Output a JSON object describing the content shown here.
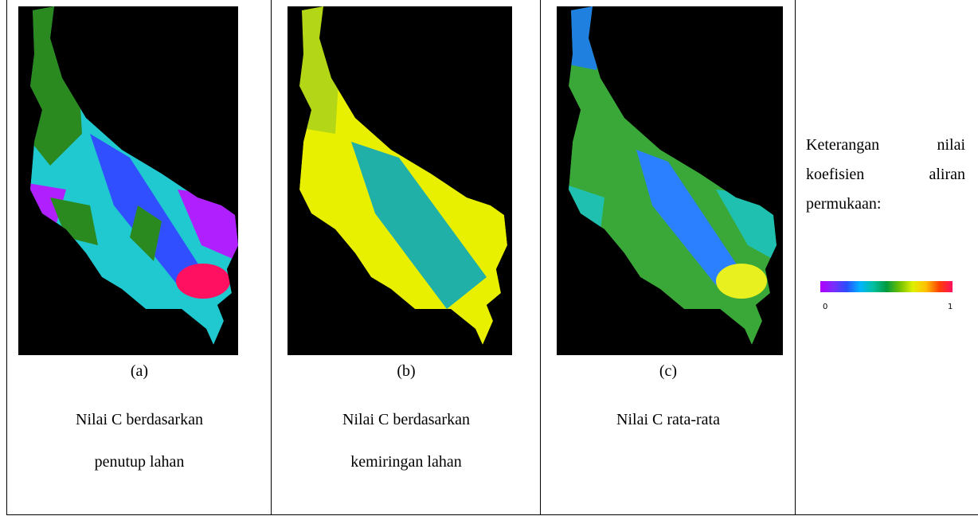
{
  "panels": [
    {
      "label": "(a)",
      "caption": [
        "Nilai C berdasarkan",
        "penutup lahan"
      ]
    },
    {
      "label": "(b)",
      "caption": [
        "Nilai C berdasarkan",
        "kemiringan lahan"
      ]
    },
    {
      "label": "(c)",
      "caption": [
        "Nilai C rata-rata"
      ]
    }
  ],
  "legend": {
    "lines": [
      "Keterangan nilai",
      "koefisien aliran",
      "permukaan:"
    ],
    "min_label": "0",
    "max_label": "1"
  }
}
